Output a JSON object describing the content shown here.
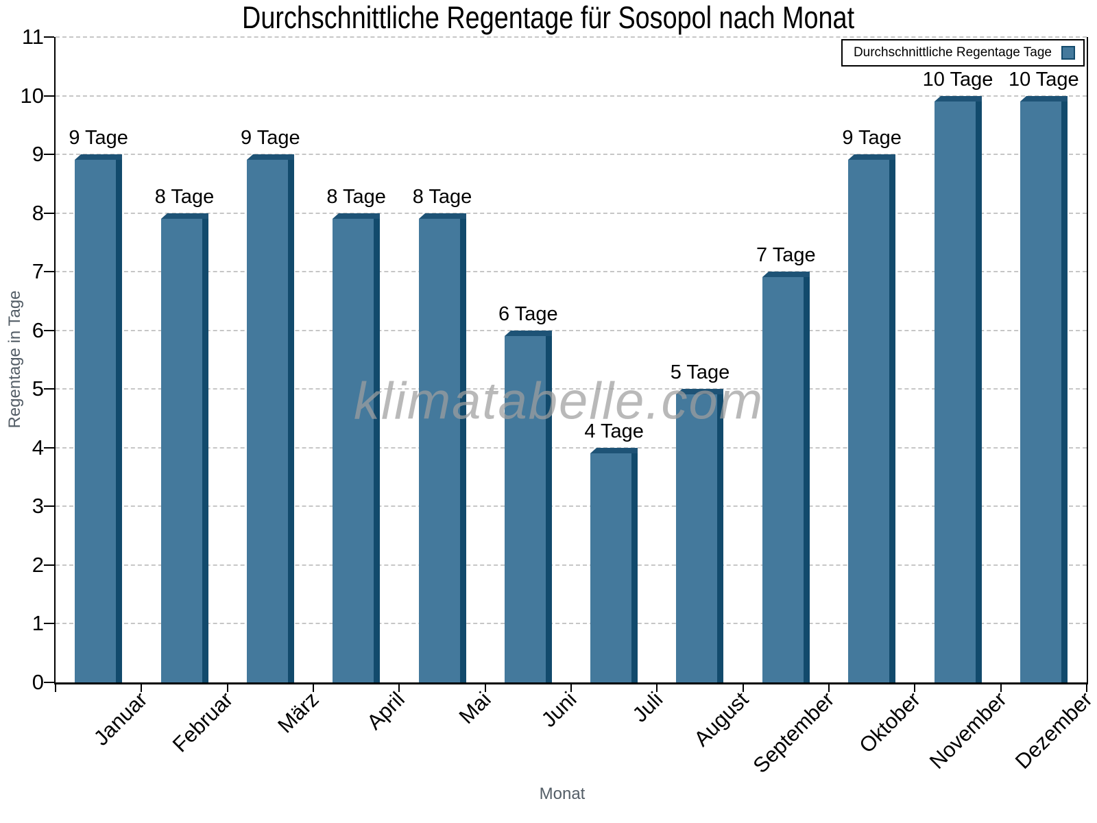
{
  "chart_data": {
    "type": "bar",
    "title": "Durchschnittliche Regentage für Sosopol nach Monat",
    "xlabel": "Monat",
    "ylabel": "Regentage in Tage",
    "ylim": [
      0,
      11
    ],
    "y_ticks": [
      0,
      1,
      2,
      3,
      4,
      5,
      6,
      7,
      8,
      9,
      10,
      11
    ],
    "categories": [
      "Januar",
      "Februar",
      "März",
      "April",
      "Mai",
      "Juni",
      "Juli",
      "August",
      "September",
      "Oktober",
      "November",
      "Dezember"
    ],
    "values": [
      9,
      8,
      9,
      8,
      8,
      6,
      4,
      5,
      7,
      9,
      10,
      10
    ],
    "value_labels": [
      "9 Tage",
      "8 Tage",
      "9 Tage",
      "8 Tage",
      "8 Tage",
      "6 Tage",
      "4 Tage",
      "5 Tage",
      "7 Tage",
      "9 Tage",
      "10 Tage",
      "10 Tage"
    ],
    "series_name": "Durchschnittliche Regentage Tage",
    "legend_position": "top-right",
    "grid": "horizontal-dashed",
    "watermark": "klimatabelle.com",
    "colors": {
      "bar_face": "#44799c",
      "bar_side": "#124a6c",
      "bar_top": "#1e5376",
      "grid": "#c6c6c6",
      "axis": "#000000",
      "muted_label": "#535d66"
    }
  }
}
